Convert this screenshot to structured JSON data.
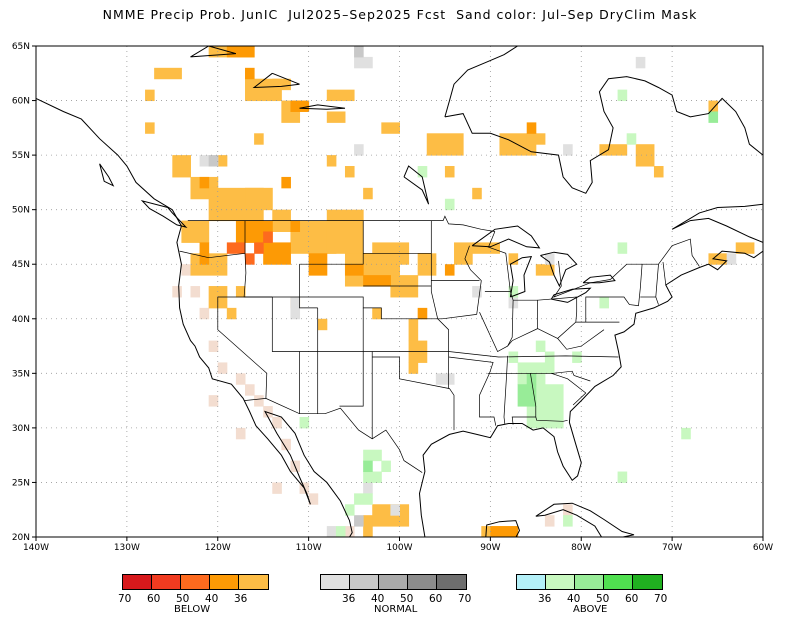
{
  "title": "NMME Precip Prob. JunIC  Jul2025–Sep2025 Fcst  Sand color: Jul–Sep DryClim Mask",
  "axes": {
    "lat_labels": [
      "65N",
      "60N",
      "55N",
      "50N",
      "45N",
      "40N",
      "35N",
      "30N",
      "25N",
      "20N"
    ],
    "lon_labels": [
      "140W",
      "130W",
      "120W",
      "110W",
      "100W",
      "90W",
      "80W",
      "70W",
      "60W"
    ]
  },
  "colors": {
    "below": [
      "#d7191c",
      "#f03b20",
      "#fd6a1e",
      "#fd9a05",
      "#fdbd45"
    ],
    "normal": [
      "#e0e0e0",
      "#c8c8c8",
      "#aaaaaa",
      "#8c8c8c",
      "#6e6e6e"
    ],
    "above": [
      "#b4f0f8",
      "#c8f8c0",
      "#98ec98",
      "#50e050",
      "#20b020"
    ],
    "sand": "#f3ddd0",
    "coast": "#000000",
    "state_line": "#000000",
    "grid": "#9a9a9a"
  },
  "legend": {
    "below": {
      "label": "BELOW",
      "ticks": [
        "70",
        "60",
        "50",
        "40",
        "36"
      ]
    },
    "normal": {
      "label": "NORMAL",
      "ticks": [
        "36",
        "40",
        "50",
        "60",
        "70"
      ]
    },
    "above": {
      "label": "ABOVE",
      "ticks": [
        "36",
        "40",
        "50",
        "60",
        "70"
      ]
    }
  }
}
